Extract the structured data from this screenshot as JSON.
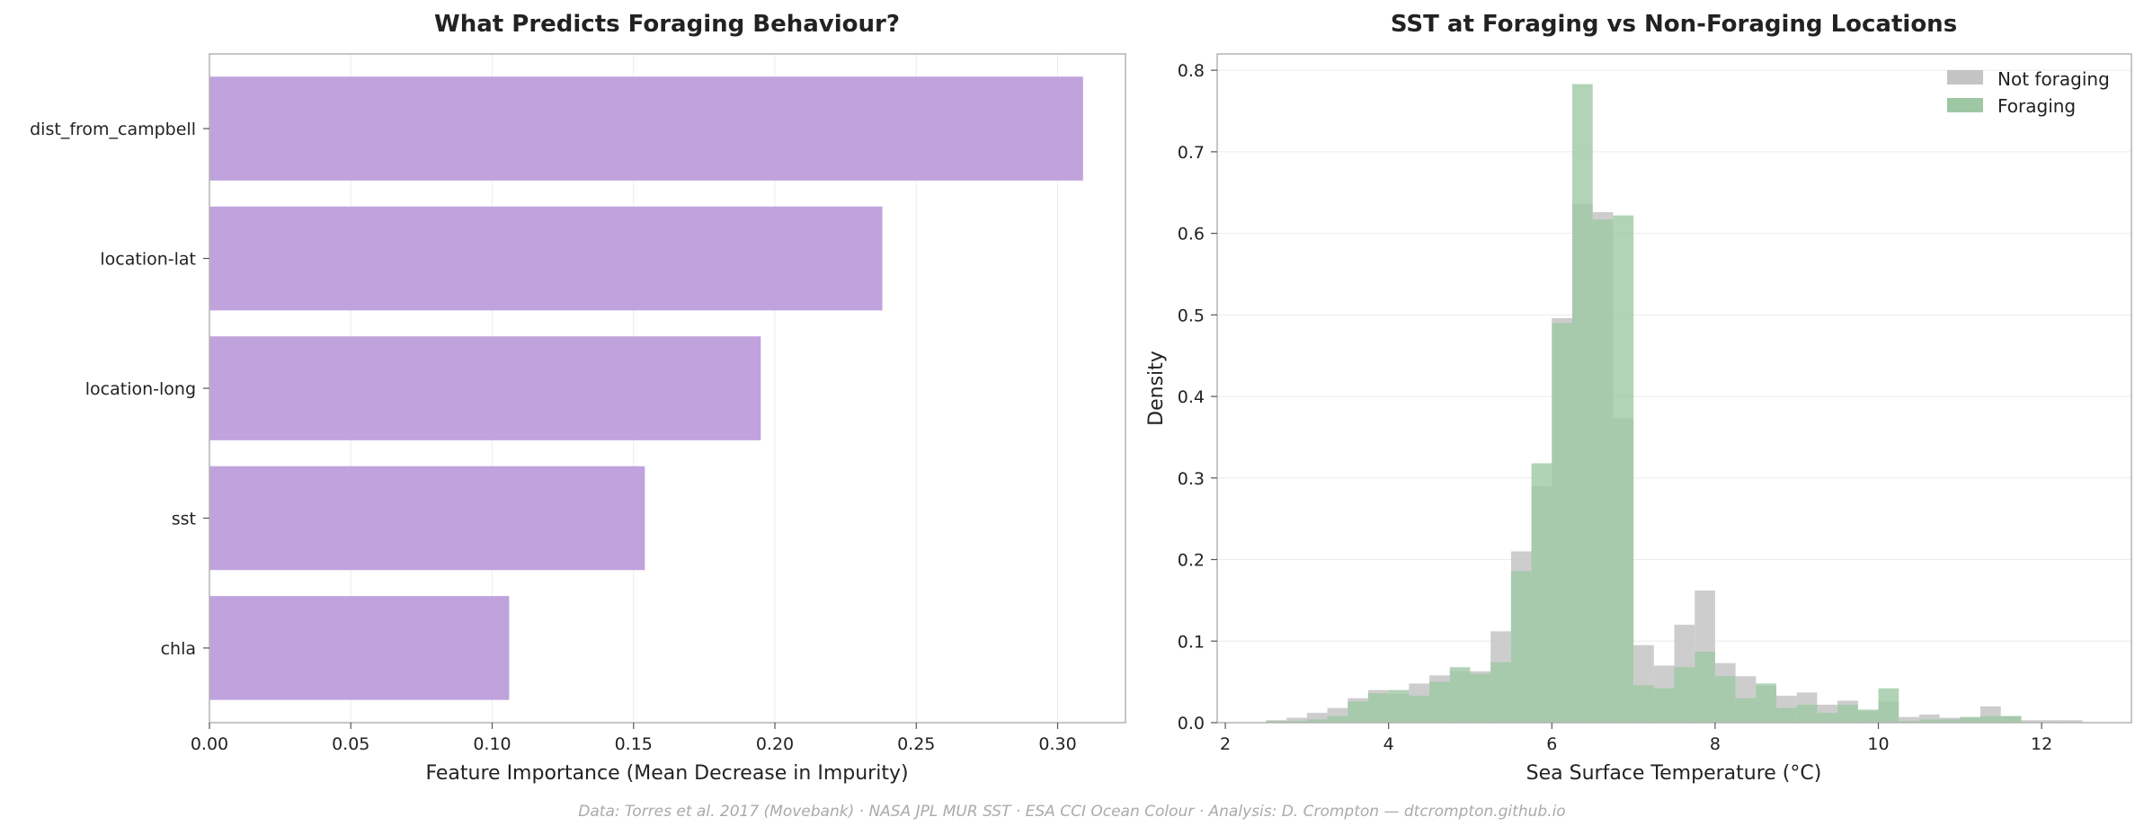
{
  "footer": "Data: Torres et al. 2017 (Movebank) · NASA JPL MUR SST · ESA CCI Ocean Colour · Analysis: D. Crompton — dtcrompton.github.io",
  "chart_data": [
    {
      "type": "bar",
      "orientation": "horizontal",
      "title": "What Predicts Foraging Behaviour?",
      "xlabel": "Feature Importance (Mean Decrease in Impurity)",
      "ylabel": "",
      "categories": [
        "dist_from_campbell",
        "location-lat",
        "location-long",
        "sst",
        "chla"
      ],
      "values": [
        0.309,
        0.238,
        0.195,
        0.154,
        0.106
      ],
      "xlim": [
        0,
        0.324
      ],
      "xticks": [
        0.0,
        0.05,
        0.1,
        0.15,
        0.2,
        0.25,
        0.3
      ],
      "xtick_labels": [
        "0.00",
        "0.05",
        "0.10",
        "0.15",
        "0.20",
        "0.25",
        "0.30"
      ],
      "grid": "vertical",
      "bar_color": "#c0a3dd"
    },
    {
      "type": "histogram",
      "title": "SST at Foraging vs Non-Foraging Locations",
      "xlabel": "Sea Surface Temperature (°C)",
      "ylabel": "Density",
      "xlim": [
        1.9,
        13.1
      ],
      "ylim": [
        0,
        0.82
      ],
      "xticks": [
        2,
        4,
        6,
        8,
        10,
        12
      ],
      "xtick_labels": [
        "2",
        "4",
        "6",
        "8",
        "10",
        "12"
      ],
      "yticks": [
        0,
        0.1,
        0.2,
        0.3,
        0.4,
        0.5,
        0.6,
        0.7,
        0.8
      ],
      "ytick_labels": [
        "0.0",
        "0.1",
        "0.2",
        "0.3",
        "0.4",
        "0.5",
        "0.6",
        "0.7",
        "0.8"
      ],
      "grid": "horizontal",
      "legend_position": "top-right",
      "bin_width": 0.25,
      "series": [
        {
          "name": "Not foraging",
          "color": "#c4c4c4",
          "bin_start": 2.5,
          "values": [
            0.003,
            0.006,
            0.012,
            0.018,
            0.03,
            0.04,
            0.035,
            0.048,
            0.058,
            0.063,
            0.063,
            0.112,
            0.21,
            0.29,
            0.496,
            0.636,
            0.626,
            0.373,
            0.095,
            0.07,
            0.12,
            0.162,
            0.073,
            0.057,
            0.045,
            0.033,
            0.037,
            0.022,
            0.027,
            0.014,
            0.026,
            0.007,
            0.01,
            0.006,
            0.006,
            0.02,
            0.008,
            0.003,
            0.003,
            0.003
          ]
        },
        {
          "name": "Foraging",
          "color": "#9ec8a4",
          "bin_start": 2.5,
          "values": [
            0.002,
            0.002,
            0.004,
            0.008,
            0.026,
            0.036,
            0.04,
            0.033,
            0.05,
            0.068,
            0.06,
            0.074,
            0.186,
            0.318,
            0.49,
            0.783,
            0.617,
            0.622,
            0.046,
            0.042,
            0.068,
            0.087,
            0.057,
            0.03,
            0.048,
            0.018,
            0.022,
            0.012,
            0.022,
            0.016,
            0.042,
            0.002,
            0.004,
            0.004,
            0.007,
            0.008,
            0.008,
            0,
            0,
            0
          ]
        }
      ]
    }
  ]
}
